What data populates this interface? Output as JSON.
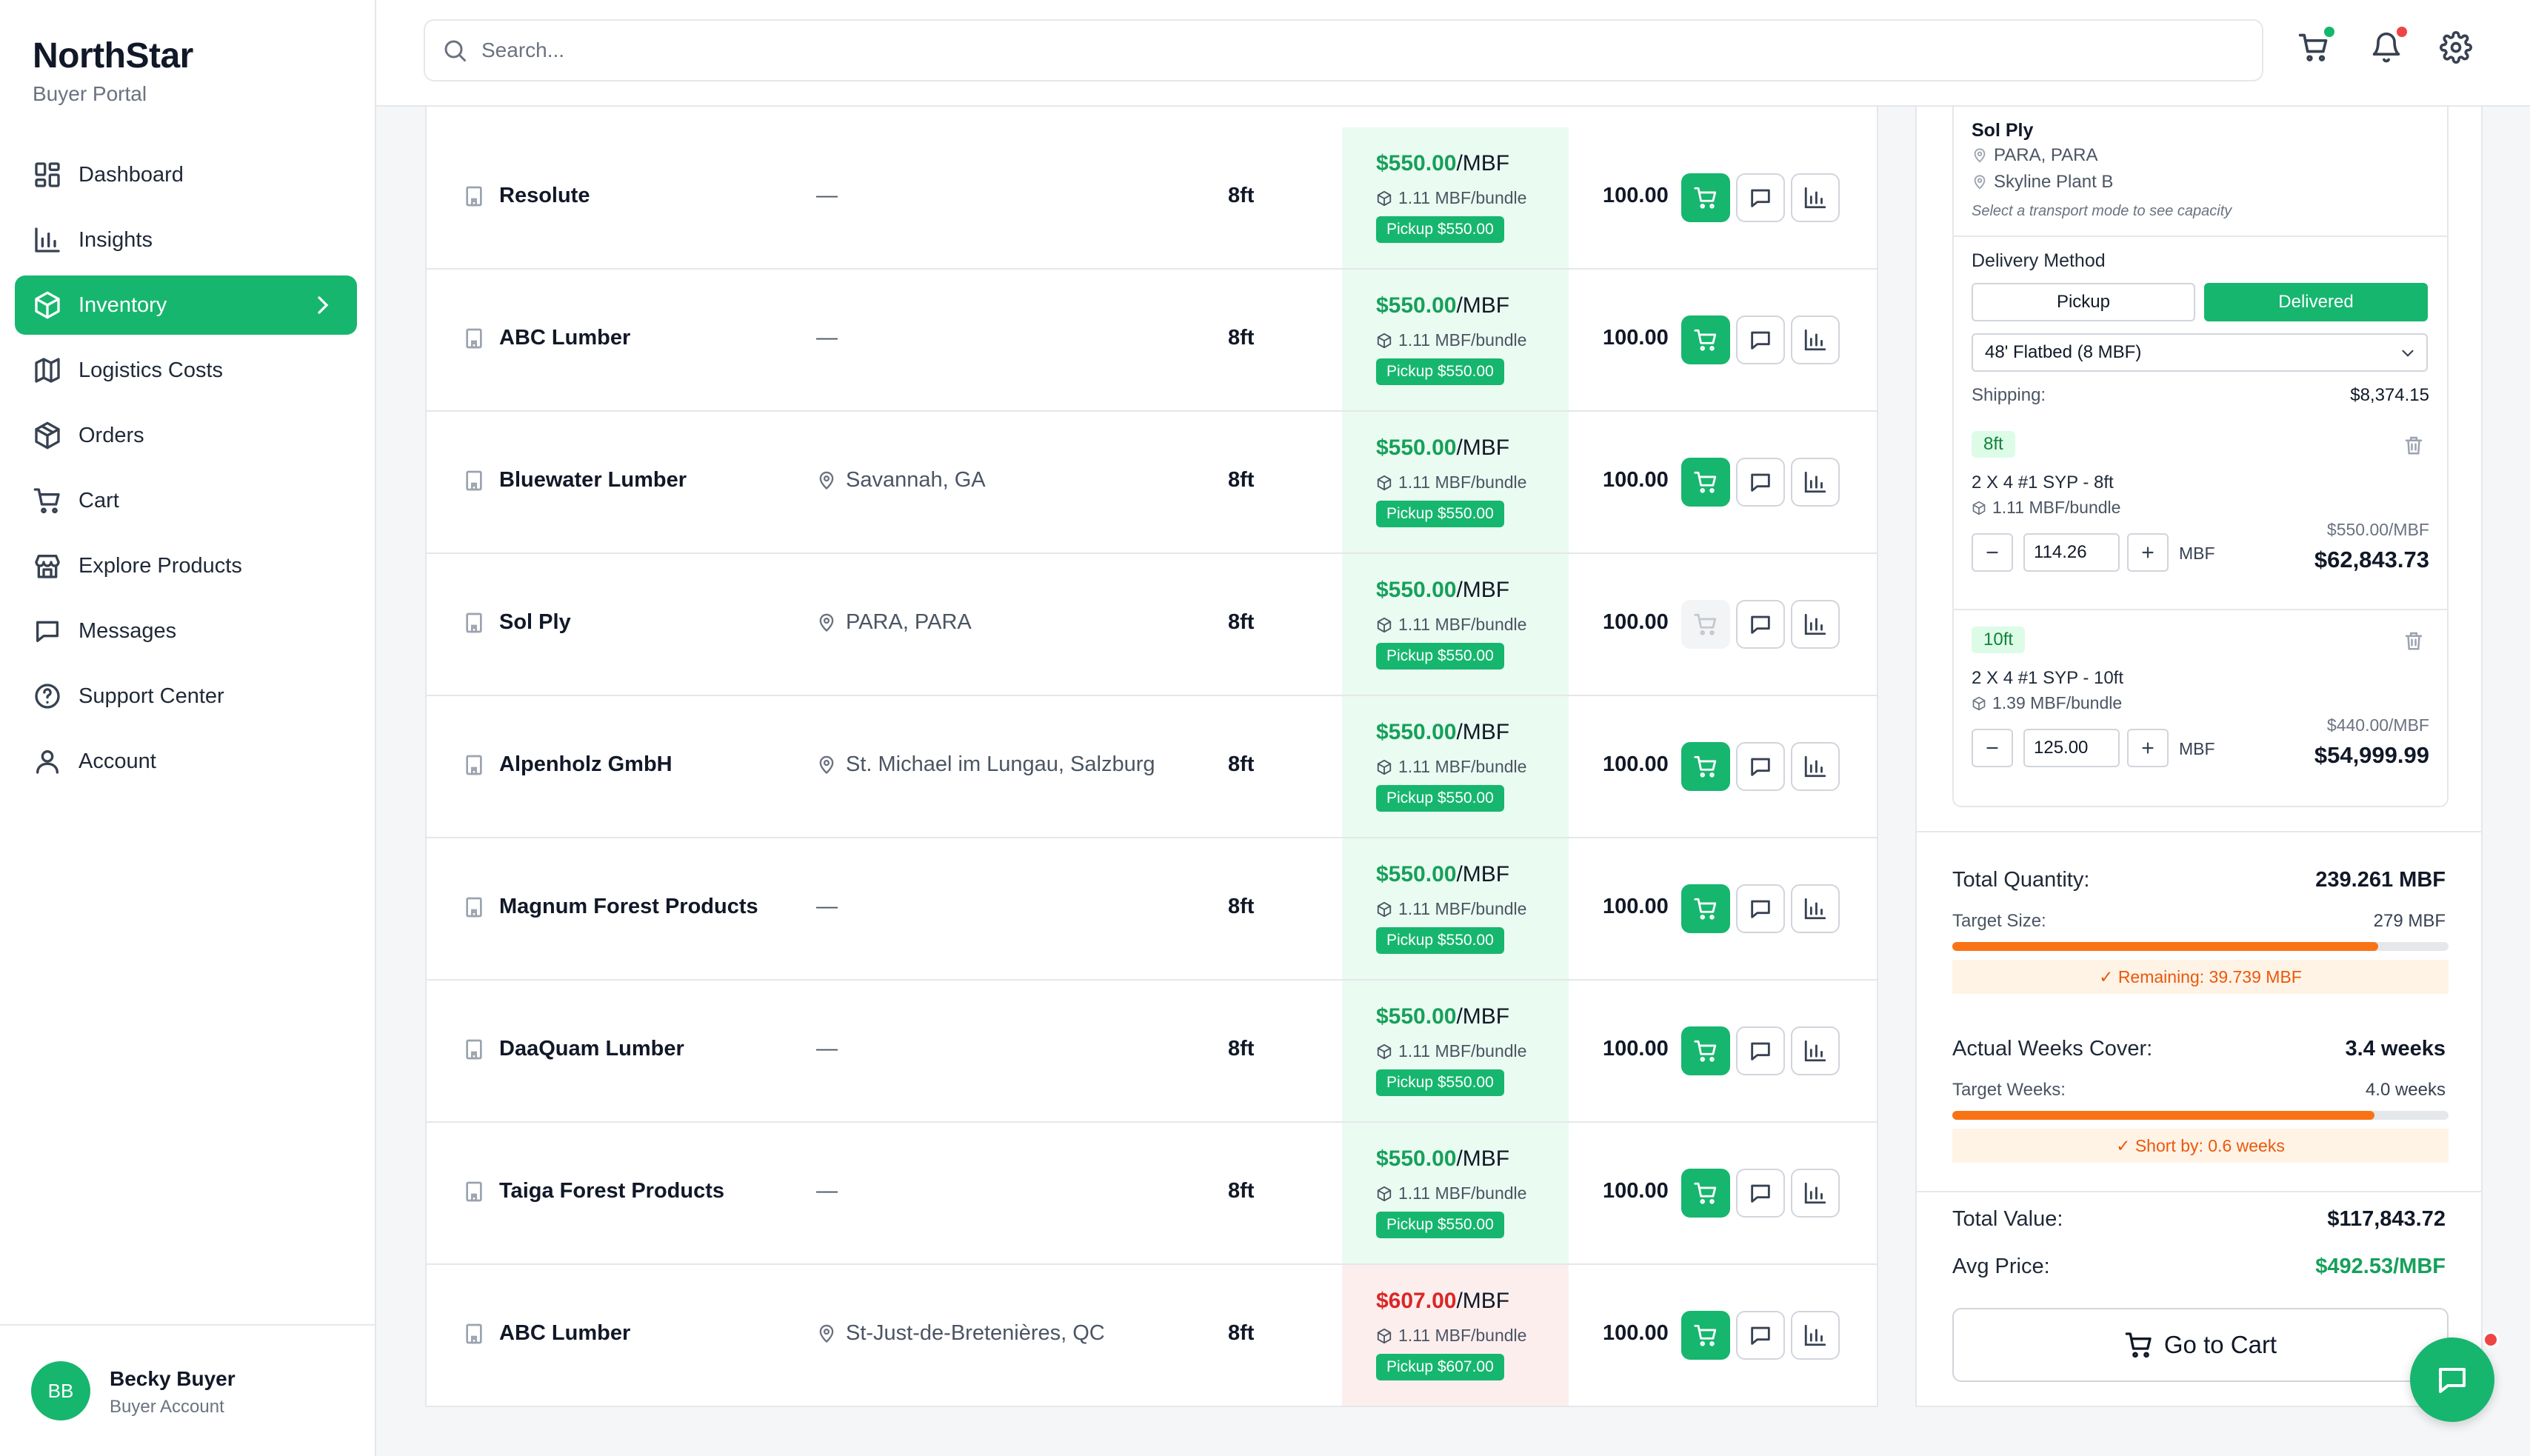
{
  "brand": {
    "name": "NorthStar",
    "subtitle": "Buyer Portal"
  },
  "nav": [
    {
      "label": "Dashboard",
      "icon": "dashboard-icon"
    },
    {
      "label": "Insights",
      "icon": "bar-chart-icon"
    },
    {
      "label": "Inventory",
      "icon": "box-icon",
      "active": true
    },
    {
      "label": "Logistics Costs",
      "icon": "map-icon"
    },
    {
      "label": "Orders",
      "icon": "package-icon"
    },
    {
      "label": "Cart",
      "icon": "cart-icon"
    },
    {
      "label": "Explore Products",
      "icon": "store-icon"
    },
    {
      "label": "Messages",
      "icon": "message-icon"
    },
    {
      "label": "Support Center",
      "icon": "help-icon"
    },
    {
      "label": "Account",
      "icon": "user-icon"
    }
  ],
  "user": {
    "initials": "BB",
    "name": "Becky Buyer",
    "role": "Buyer Account"
  },
  "search": {
    "placeholder": "Search..."
  },
  "colors": {
    "accent": "#16b66e",
    "price_green": "#16a05a",
    "price_red": "#dc2626",
    "warning": "#f97316"
  },
  "rows": [
    {
      "supplier": "Resolute",
      "location": "—",
      "has_location": false,
      "length": "8ft",
      "price": "$550.00",
      "unit": "/MBF",
      "bundle": "1.11 MBF/bundle",
      "pickup": "Pickup $550.00",
      "qty": "100.00",
      "high": false,
      "cart_enabled": true
    },
    {
      "supplier": "ABC Lumber",
      "location": "—",
      "has_location": false,
      "length": "8ft",
      "price": "$550.00",
      "unit": "/MBF",
      "bundle": "1.11 MBF/bundle",
      "pickup": "Pickup $550.00",
      "qty": "100.00",
      "high": false,
      "cart_enabled": true
    },
    {
      "supplier": "Bluewater Lumber",
      "location": "Savannah, GA",
      "has_location": true,
      "length": "8ft",
      "price": "$550.00",
      "unit": "/MBF",
      "bundle": "1.11 MBF/bundle",
      "pickup": "Pickup $550.00",
      "qty": "100.00",
      "high": false,
      "cart_enabled": true
    },
    {
      "supplier": "Sol Ply",
      "location": "PARA, PARA",
      "has_location": true,
      "length": "8ft",
      "price": "$550.00",
      "unit": "/MBF",
      "bundle": "1.11 MBF/bundle",
      "pickup": "Pickup $550.00",
      "qty": "100.00",
      "high": false,
      "cart_enabled": false
    },
    {
      "supplier": "Alpenholz GmbH",
      "location": "St. Michael im Lungau, Salzburg",
      "has_location": true,
      "length": "8ft",
      "price": "$550.00",
      "unit": "/MBF",
      "bundle": "1.11 MBF/bundle",
      "pickup": "Pickup $550.00",
      "qty": "100.00",
      "high": false,
      "cart_enabled": true
    },
    {
      "supplier": "Magnum Forest Products",
      "location": "—",
      "has_location": false,
      "length": "8ft",
      "price": "$550.00",
      "unit": "/MBF",
      "bundle": "1.11 MBF/bundle",
      "pickup": "Pickup $550.00",
      "qty": "100.00",
      "high": false,
      "cart_enabled": true
    },
    {
      "supplier": "DaaQuam Lumber",
      "location": "—",
      "has_location": false,
      "length": "8ft",
      "price": "$550.00",
      "unit": "/MBF",
      "bundle": "1.11 MBF/bundle",
      "pickup": "Pickup $550.00",
      "qty": "100.00",
      "high": false,
      "cart_enabled": true
    },
    {
      "supplier": "Taiga Forest Products",
      "location": "—",
      "has_location": false,
      "length": "8ft",
      "price": "$550.00",
      "unit": "/MBF",
      "bundle": "1.11 MBF/bundle",
      "pickup": "Pickup $550.00",
      "qty": "100.00",
      "high": false,
      "cart_enabled": true
    },
    {
      "supplier": "ABC Lumber",
      "location": "St-Just-de-Bretenières, QC",
      "has_location": true,
      "length": "8ft",
      "price": "$607.00",
      "unit": "/MBF",
      "bundle": "1.11 MBF/bundle",
      "pickup": "Pickup $607.00",
      "qty": "100.00",
      "high": true,
      "cart_enabled": true
    }
  ],
  "cart_panel": {
    "supplier": "Sol Ply",
    "location": "PARA, PARA",
    "plant": "Skyline Plant B",
    "hint": "Select a transport mode to see capacity",
    "delivery_label": "Delivery Method",
    "pickup_label": "Pickup",
    "delivered_label": "Delivered",
    "transport": "48' Flatbed (8 MBF)",
    "shipping_label": "Shipping:",
    "shipping_value": "$8,374.15",
    "items": [
      {
        "length": "8ft",
        "title": "2 X 4 #1 SYP - 8ft",
        "bundle": "1.11 MBF/bundle",
        "qty": "114.26",
        "unit": "MBF",
        "unit_price": "$550.00/MBF",
        "total": "$62,843.73"
      },
      {
        "length": "10ft",
        "title": "2 X 4 #1 SYP - 10ft",
        "bundle": "1.39 MBF/bundle",
        "qty": "125.00",
        "unit": "MBF",
        "unit_price": "$440.00/MBF",
        "total": "$54,999.99"
      }
    ]
  },
  "summary": {
    "total_qty_label": "Total Quantity:",
    "total_qty": "239.261 MBF",
    "target_size_label": "Target Size:",
    "target_size": "279 MBF",
    "qty_progress": 0.8576,
    "remaining": "✓ Remaining: 39.739 MBF",
    "weeks_label": "Actual Weeks Cover:",
    "weeks": "3.4 weeks",
    "target_weeks_label": "Target Weeks:",
    "target_weeks": "4.0 weeks",
    "weeks_progress": 0.85,
    "short": "✓ Short by: 0.6 weeks",
    "total_value_label": "Total Value:",
    "total_value": "$117,843.72",
    "avg_price_label": "Avg Price:",
    "avg_price": "$492.53/MBF",
    "go_cart": "Go to Cart"
  }
}
